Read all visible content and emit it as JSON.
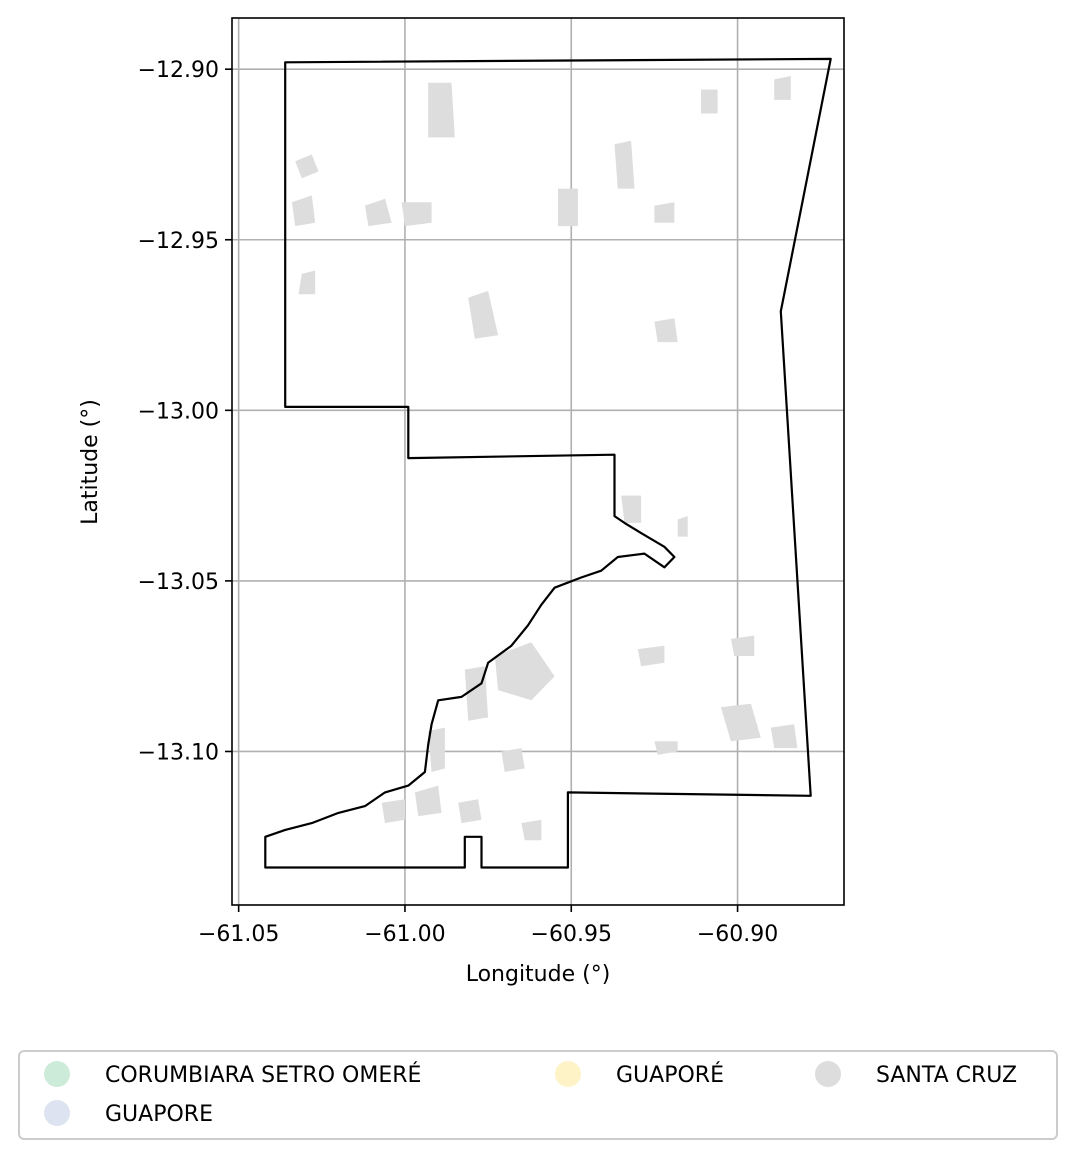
{
  "chart_data": {
    "type": "map",
    "title": "",
    "xlabel": "Longitude (°)",
    "ylabel": "Latitude (°)",
    "xlim": [
      -61.052,
      -60.868
    ],
    "ylim": [
      -13.145,
      -12.885
    ],
    "xticks": [
      -61.05,
      -61.0,
      -60.95,
      -60.9
    ],
    "xtick_labels": [
      "−61.05",
      "−61.00",
      "−60.95",
      "−60.90"
    ],
    "yticks": [
      -12.9,
      -12.95,
      -13.0,
      -13.05,
      -13.1
    ],
    "ytick_labels": [
      "−12.90",
      "−12.95",
      "−13.00",
      "−13.05",
      "−13.10"
    ],
    "grid": true,
    "boundary_color": "#000000",
    "boundary": [
      [
        -61.036,
        -12.898
      ],
      [
        -60.872,
        -12.897
      ],
      [
        -60.887,
        -12.971
      ],
      [
        -60.878,
        -13.113
      ],
      [
        -60.951,
        -13.112
      ],
      [
        -60.951,
        -13.134
      ],
      [
        -60.977,
        -13.134
      ],
      [
        -60.977,
        -13.125
      ],
      [
        -60.982,
        -13.125
      ],
      [
        -60.982,
        -13.134
      ],
      [
        -61.042,
        -13.134
      ],
      [
        -61.042,
        -13.125
      ],
      [
        -61.036,
        -13.123
      ],
      [
        -61.028,
        -13.121
      ],
      [
        -61.02,
        -13.118
      ],
      [
        -61.012,
        -13.116
      ],
      [
        -61.006,
        -13.112
      ],
      [
        -60.999,
        -13.11
      ],
      [
        -60.994,
        -13.106
      ],
      [
        -60.993,
        -13.098
      ],
      [
        -60.992,
        -13.092
      ],
      [
        -60.99,
        -13.085
      ],
      [
        -60.983,
        -13.084
      ],
      [
        -60.977,
        -13.08
      ],
      [
        -60.975,
        -13.074
      ],
      [
        -60.968,
        -13.069
      ],
      [
        -60.963,
        -13.063
      ],
      [
        -60.959,
        -13.057
      ],
      [
        -60.955,
        -13.052
      ],
      [
        -60.947,
        -13.049
      ],
      [
        -60.941,
        -13.047
      ],
      [
        -60.936,
        -13.043
      ],
      [
        -60.928,
        -13.042
      ],
      [
        -60.922,
        -13.046
      ],
      [
        -60.919,
        -13.043
      ],
      [
        -60.922,
        -13.04
      ],
      [
        -60.929,
        -13.036
      ],
      [
        -60.934,
        -13.033
      ],
      [
        -60.937,
        -13.031
      ],
      [
        -60.937,
        -13.013
      ],
      [
        -60.999,
        -13.014
      ],
      [
        -60.999,
        -12.999
      ],
      [
        -61.036,
        -12.999
      ]
    ],
    "regions_color": "#dddddd",
    "regions": [
      [
        [
          -61.033,
          -12.927
        ],
        [
          -61.028,
          -12.925
        ],
        [
          -61.026,
          -12.93
        ],
        [
          -61.031,
          -12.932
        ]
      ],
      [
        [
          -61.034,
          -12.939
        ],
        [
          -61.028,
          -12.937
        ],
        [
          -61.027,
          -12.945
        ],
        [
          -61.033,
          -12.946
        ]
      ],
      [
        [
          -61.031,
          -12.96
        ],
        [
          -61.027,
          -12.959
        ],
        [
          -61.027,
          -12.966
        ],
        [
          -61.032,
          -12.966
        ]
      ],
      [
        [
          -61.012,
          -12.94
        ],
        [
          -61.006,
          -12.938
        ],
        [
          -61.004,
          -12.945
        ],
        [
          -61.011,
          -12.946
        ]
      ],
      [
        [
          -61.001,
          -12.939
        ],
        [
          -60.992,
          -12.939
        ],
        [
          -60.992,
          -12.945
        ],
        [
          -61.0,
          -12.946
        ]
      ],
      [
        [
          -60.993,
          -12.904
        ],
        [
          -60.986,
          -12.904
        ],
        [
          -60.985,
          -12.92
        ],
        [
          -60.993,
          -12.92
        ]
      ],
      [
        [
          -60.981,
          -12.967
        ],
        [
          -60.975,
          -12.965
        ],
        [
          -60.972,
          -12.978
        ],
        [
          -60.979,
          -12.979
        ]
      ],
      [
        [
          -60.954,
          -12.935
        ],
        [
          -60.948,
          -12.935
        ],
        [
          -60.948,
          -12.946
        ],
        [
          -60.954,
          -12.946
        ]
      ],
      [
        [
          -60.937,
          -12.922
        ],
        [
          -60.932,
          -12.921
        ],
        [
          -60.931,
          -12.935
        ],
        [
          -60.936,
          -12.935
        ]
      ],
      [
        [
          -60.925,
          -12.974
        ],
        [
          -60.919,
          -12.973
        ],
        [
          -60.918,
          -12.98
        ],
        [
          -60.924,
          -12.98
        ]
      ],
      [
        [
          -60.925,
          -12.94
        ],
        [
          -60.919,
          -12.939
        ],
        [
          -60.919,
          -12.945
        ],
        [
          -60.925,
          -12.945
        ]
      ],
      [
        [
          -60.911,
          -12.906
        ],
        [
          -60.906,
          -12.906
        ],
        [
          -60.906,
          -12.913
        ],
        [
          -60.911,
          -12.913
        ]
      ],
      [
        [
          -60.889,
          -12.903
        ],
        [
          -60.884,
          -12.902
        ],
        [
          -60.884,
          -12.909
        ],
        [
          -60.889,
          -12.909
        ]
      ],
      [
        [
          -60.973,
          -13.072
        ],
        [
          -60.962,
          -13.068
        ],
        [
          -60.955,
          -13.078
        ],
        [
          -60.962,
          -13.085
        ],
        [
          -60.972,
          -13.082
        ]
      ],
      [
        [
          -60.982,
          -13.076
        ],
        [
          -60.976,
          -13.075
        ],
        [
          -60.975,
          -13.09
        ],
        [
          -60.981,
          -13.091
        ]
      ],
      [
        [
          -60.993,
          -13.094
        ],
        [
          -60.988,
          -13.093
        ],
        [
          -60.988,
          -13.105
        ],
        [
          -60.992,
          -13.106
        ]
      ],
      [
        [
          -60.997,
          -13.112
        ],
        [
          -60.99,
          -13.11
        ],
        [
          -60.989,
          -13.118
        ],
        [
          -60.996,
          -13.119
        ]
      ],
      [
        [
          -61.007,
          -13.115
        ],
        [
          -61.0,
          -13.114
        ],
        [
          -61.0,
          -13.12
        ],
        [
          -61.006,
          -13.121
        ]
      ],
      [
        [
          -60.971,
          -13.1
        ],
        [
          -60.965,
          -13.099
        ],
        [
          -60.964,
          -13.105
        ],
        [
          -60.97,
          -13.106
        ]
      ],
      [
        [
          -60.984,
          -13.115
        ],
        [
          -60.978,
          -13.114
        ],
        [
          -60.977,
          -13.12
        ],
        [
          -60.983,
          -13.121
        ]
      ],
      [
        [
          -60.965,
          -13.121
        ],
        [
          -60.959,
          -13.12
        ],
        [
          -60.959,
          -13.126
        ],
        [
          -60.964,
          -13.126
        ]
      ],
      [
        [
          -60.93,
          -13.07
        ],
        [
          -60.922,
          -13.069
        ],
        [
          -60.922,
          -13.074
        ],
        [
          -60.929,
          -13.075
        ]
      ],
      [
        [
          -60.902,
          -13.067
        ],
        [
          -60.895,
          -13.066
        ],
        [
          -60.895,
          -13.072
        ],
        [
          -60.901,
          -13.072
        ]
      ],
      [
        [
          -60.905,
          -13.087
        ],
        [
          -60.896,
          -13.086
        ],
        [
          -60.893,
          -13.096
        ],
        [
          -60.902,
          -13.097
        ]
      ],
      [
        [
          -60.89,
          -13.093
        ],
        [
          -60.883,
          -13.092
        ],
        [
          -60.882,
          -13.099
        ],
        [
          -60.889,
          -13.099
        ]
      ],
      [
        [
          -60.925,
          -13.097
        ],
        [
          -60.918,
          -13.097
        ],
        [
          -60.918,
          -13.1
        ],
        [
          -60.924,
          -13.101
        ]
      ],
      [
        [
          -60.918,
          -13.032
        ],
        [
          -60.915,
          -13.031
        ],
        [
          -60.915,
          -13.037
        ],
        [
          -60.918,
          -13.037
        ]
      ],
      [
        [
          -60.935,
          -13.025
        ],
        [
          -60.929,
          -13.025
        ],
        [
          -60.929,
          -13.033
        ],
        [
          -60.934,
          -13.033
        ]
      ]
    ],
    "legend_position": "bottom",
    "legend": [
      {
        "label": "CORUMBIARA SETRO OMERÉ",
        "color": "#cdebd9"
      },
      {
        "label": "GUAPORÉ",
        "color": "#fdf3c6"
      },
      {
        "label": "SANTA CRUZ",
        "color": "#dddddd"
      },
      {
        "label": "GUAPORE",
        "color": "#dde3f0"
      }
    ]
  }
}
